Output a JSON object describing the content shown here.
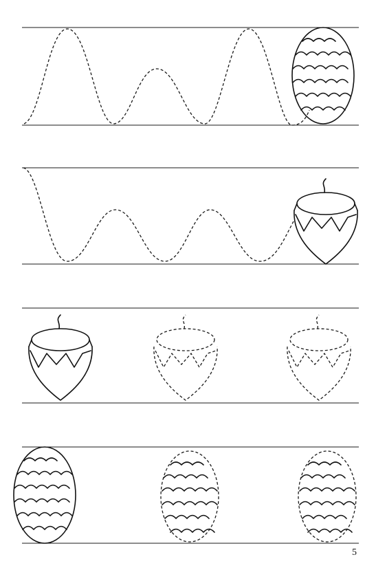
{
  "page": {
    "number": "5"
  },
  "icons": {
    "pine_cone": "pine-cone-icon",
    "acorn": "acorn-icon"
  },
  "colors": {
    "ink": "#111111",
    "paper": "#ffffff"
  }
}
